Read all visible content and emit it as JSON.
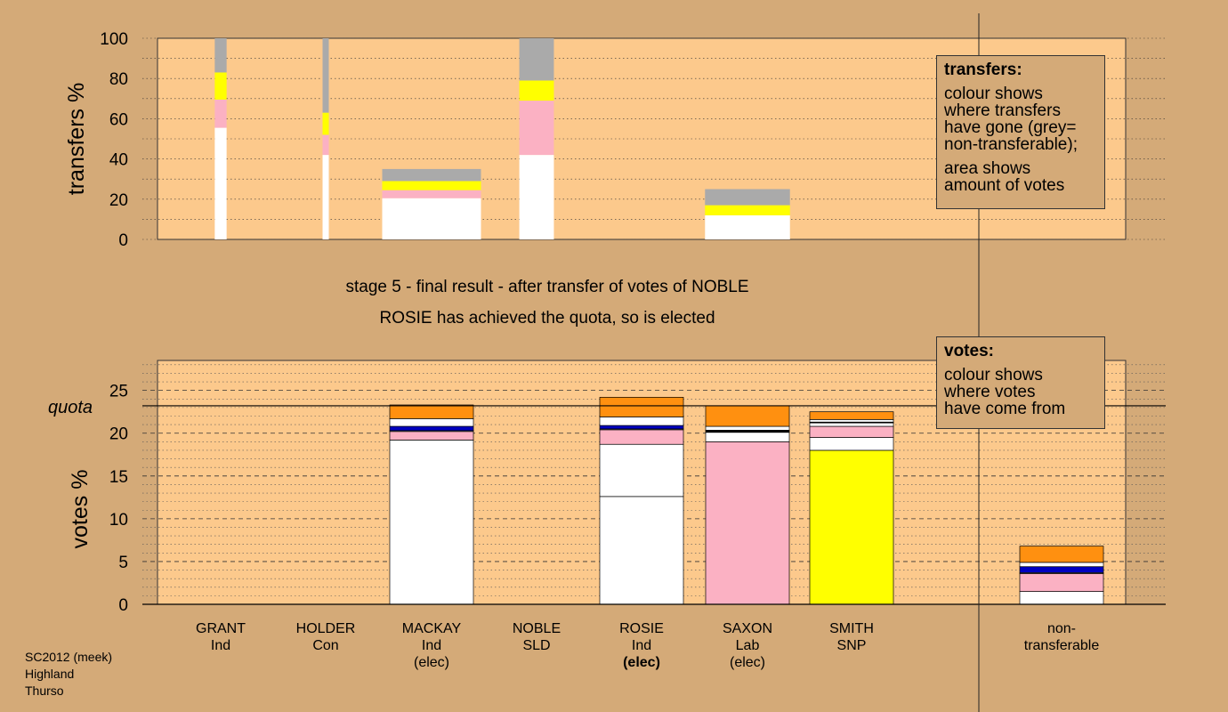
{
  "caption": {
    "stage": "stage 5 - final result - after transfer of votes of NOBLE",
    "elected": "ROSIE has achieved the quota, so is elected"
  },
  "legend_transfers": {
    "title": "transfers:",
    "line1": "colour shows",
    "line2": "where transfers",
    "line3": "have gone (grey=",
    "line4": "non-transferable);",
    "line5": "area shows",
    "line6": "amount of votes"
  },
  "legend_votes": {
    "title": "votes:",
    "line1": "colour shows",
    "line2": "where votes",
    "line3": "have come from"
  },
  "candidates": [
    {
      "name": "GRANT",
      "party": "Ind",
      "status": ""
    },
    {
      "name": "HOLDER",
      "party": "Con",
      "status": ""
    },
    {
      "name": "MACKAY",
      "party": "Ind",
      "status": "(elec)"
    },
    {
      "name": "NOBLE",
      "party": "SLD",
      "status": ""
    },
    {
      "name": "ROSIE",
      "party": "Ind",
      "status": "(elec)"
    },
    {
      "name": "SAXON",
      "party": "Lab",
      "status": "(elec)"
    },
    {
      "name": "SMITH",
      "party": "SNP",
      "status": ""
    },
    {
      "name": "non-",
      "party": "transferable",
      "status": ""
    }
  ],
  "footer": {
    "line1": "SC2012 (meek)",
    "line2": "Highland",
    "line3": "Thurso"
  },
  "colors": {
    "background": "#d4aa78",
    "plot_bg": "#fcc98c",
    "white": "#ffffff",
    "pink": "#fbb1c3",
    "yellow": "#ffff00",
    "grey": "#aaaaaa",
    "orange": "#ff9010",
    "blue": "#0000c0",
    "black": "#000000"
  },
  "chart_data": [
    {
      "type": "bar",
      "stacked": true,
      "ylabel": "transfers %",
      "ylim": [
        0,
        100
      ],
      "yticks": [
        0,
        20,
        40,
        60,
        80,
        100
      ],
      "grid": "dotted",
      "bars": [
        {
          "candidate": "GRANT",
          "width_share": 0.12,
          "segments": [
            {
              "color": "white",
              "value": 55.5
            },
            {
              "color": "pink",
              "value": 14
            },
            {
              "color": "yellow",
              "value": 13.5
            },
            {
              "color": "grey",
              "value": 17
            }
          ]
        },
        {
          "candidate": "HOLDER",
          "width_share": 0.06,
          "segments": [
            {
              "color": "white",
              "value": 42
            },
            {
              "color": "pink",
              "value": 10
            },
            {
              "color": "yellow",
              "value": 11
            },
            {
              "color": "grey",
              "value": 37
            }
          ]
        },
        {
          "candidate": "MACKAY",
          "width_share": 1.0,
          "segments": [
            {
              "color": "white",
              "value": 20.5
            },
            {
              "color": "pink",
              "value": 4
            },
            {
              "color": "yellow",
              "value": 4.5
            },
            {
              "color": "grey",
              "value": 6
            }
          ]
        },
        {
          "candidate": "NOBLE",
          "width_share": 0.35,
          "segments": [
            {
              "color": "white",
              "value": 42
            },
            {
              "color": "pink",
              "value": 27
            },
            {
              "color": "yellow",
              "value": 10
            },
            {
              "color": "grey",
              "value": 21
            }
          ]
        },
        {
          "candidate": "SAXON",
          "width_share": 0.86,
          "segments": [
            {
              "color": "white",
              "value": 12
            },
            {
              "color": "yellow",
              "value": 5
            },
            {
              "color": "grey",
              "value": 8
            }
          ]
        }
      ]
    },
    {
      "type": "bar",
      "stacked": true,
      "ylabel": "votes %",
      "ylim": [
        0,
        28.5
      ],
      "yticks": [
        0,
        5,
        10,
        15,
        20,
        25
      ],
      "quota": 23.2,
      "quota_label": "quota",
      "grid": "dashed",
      "categories": [
        "GRANT",
        "HOLDER",
        "MACKAY",
        "NOBLE",
        "ROSIE",
        "SAXON",
        "SMITH",
        "non-transferable"
      ],
      "bars": [
        {
          "candidate": "MACKAY",
          "segments": [
            {
              "color": "white",
              "value": 19.2
            },
            {
              "color": "pink",
              "value": 1.0
            },
            {
              "color": "white",
              "value": 0.1
            },
            {
              "color": "blue",
              "value": 0.5
            },
            {
              "color": "white",
              "value": 0.9
            },
            {
              "color": "orange",
              "value": 1.6
            }
          ]
        },
        {
          "candidate": "ROSIE",
          "segments": [
            {
              "color": "white",
              "value": 12.6
            },
            {
              "color": "white",
              "value": 6.1
            },
            {
              "color": "pink",
              "value": 1.7
            },
            {
              "color": "white",
              "value": 0.1
            },
            {
              "color": "blue",
              "value": 0.4
            },
            {
              "color": "white",
              "value": 1.0
            },
            {
              "color": "orange",
              "value": 2.3
            }
          ]
        },
        {
          "candidate": "SAXON",
          "segments": [
            {
              "color": "pink",
              "value": 19.0
            },
            {
              "color": "white",
              "value": 1.1
            },
            {
              "color": "black",
              "value": 0.25
            },
            {
              "color": "white",
              "value": 0.45
            },
            {
              "color": "orange",
              "value": 2.4
            }
          ]
        },
        {
          "candidate": "SMITH",
          "segments": [
            {
              "color": "yellow",
              "value": 18.0
            },
            {
              "color": "white",
              "value": 1.5
            },
            {
              "color": "pink",
              "value": 1.3
            },
            {
              "color": "white",
              "value": 0.4
            },
            {
              "color": "black",
              "value": 0.1
            },
            {
              "color": "white",
              "value": 0.3
            },
            {
              "color": "orange",
              "value": 0.9
            }
          ]
        },
        {
          "candidate": "non-transferable",
          "segments": [
            {
              "color": "white",
              "value": 1.5
            },
            {
              "color": "pink",
              "value": 2.1
            },
            {
              "color": "white",
              "value": 0.1
            },
            {
              "color": "blue",
              "value": 0.7
            },
            {
              "color": "white",
              "value": 0.5
            },
            {
              "color": "orange",
              "value": 1.9
            }
          ]
        }
      ]
    }
  ]
}
